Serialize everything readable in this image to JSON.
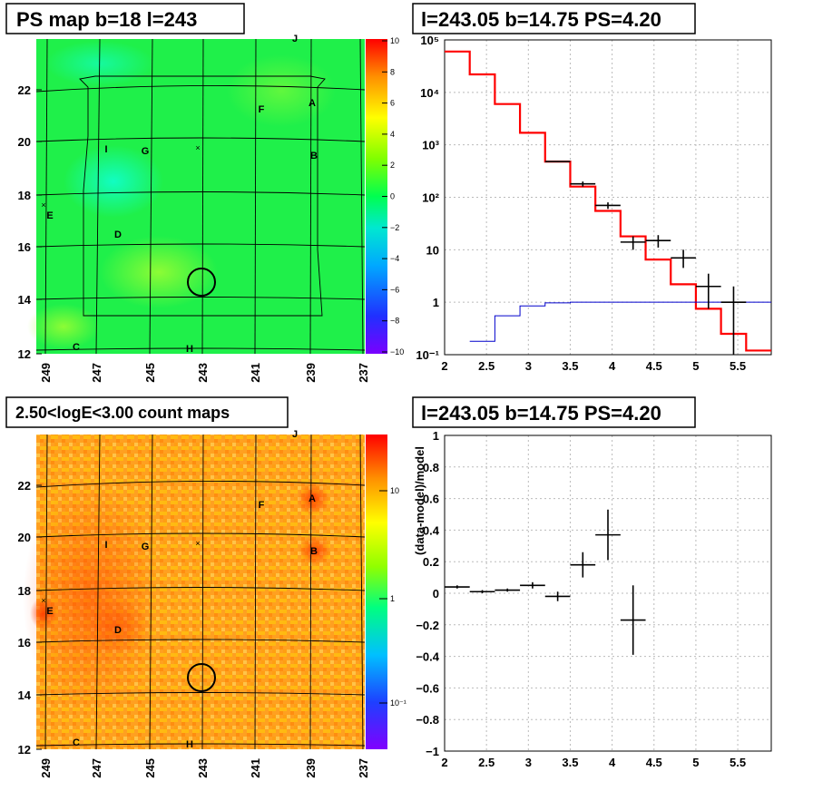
{
  "titles": {
    "ps_map": "PS map b=18 l=243",
    "spectrum": "l=243.05 b=14.75 PS=4.20",
    "count_map": "2.50<logE<3.00 count maps",
    "residual": "l=243.05 b=14.75 PS=4.20"
  },
  "map_axes": {
    "y_ticks": [
      "12",
      "14",
      "16",
      "18",
      "20",
      "22"
    ],
    "x_ticks": [
      "249",
      "247",
      "245",
      "243",
      "241",
      "239",
      "237"
    ]
  },
  "map_labels": [
    "J",
    "A",
    "F",
    "I",
    "G",
    "B",
    "E",
    "D",
    "C",
    "H"
  ],
  "ps_colorbar": {
    "ticks": [
      "10",
      "8",
      "6",
      "4",
      "2",
      "0",
      "−2",
      "−4",
      "−6",
      "−8",
      "−10"
    ]
  },
  "count_colorbar": {
    "ticks": [
      "10",
      "1",
      "10⁻¹"
    ]
  },
  "chart_data": [
    {
      "type": "line",
      "title": "l=243.05 b=14.75 PS=4.20",
      "yscale": "log",
      "xlim": [
        2,
        5.9
      ],
      "ylim": [
        0.1,
        100000
      ],
      "grid": true,
      "x_ticks": [
        "2",
        "2.5",
        "3",
        "3.5",
        "4",
        "4.5",
        "5",
        "5.5"
      ],
      "y_ticks": [
        "10⁻¹",
        "1",
        "10",
        "10²",
        "10³",
        "10⁴",
        "10⁵"
      ],
      "series": [
        {
          "kind": "data_points",
          "color": "#000000",
          "points": [
            {
              "x": 3.35,
              "xerr": 0.15,
              "y": 480,
              "ylo": 470,
              "yhi": 490
            },
            {
              "x": 3.65,
              "xerr": 0.15,
              "y": 180,
              "ylo": 160,
              "yhi": 200
            },
            {
              "x": 3.95,
              "xerr": 0.15,
              "y": 70,
              "ylo": 60,
              "yhi": 80
            },
            {
              "x": 4.25,
              "xerr": 0.15,
              "y": 14,
              "ylo": 10,
              "yhi": 18
            },
            {
              "x": 4.55,
              "xerr": 0.15,
              "y": 15,
              "ylo": 11,
              "yhi": 19
            },
            {
              "x": 4.85,
              "xerr": 0.15,
              "y": 7,
              "ylo": 4.5,
              "yhi": 10
            },
            {
              "x": 5.15,
              "xerr": 0.15,
              "y": 2,
              "ylo": 0.75,
              "yhi": 3.5
            },
            {
              "x": 5.45,
              "xerr": 0.15,
              "y": 1,
              "ylo": 0.1,
              "yhi": 2
            }
          ]
        },
        {
          "kind": "step",
          "color": "#ff0000",
          "edges": [
            2,
            2.3,
            2.6,
            2.9,
            3.2,
            3.5,
            3.8,
            4.1,
            4.4,
            4.7,
            5,
            5.3,
            5.6,
            5.9
          ],
          "values": [
            60000,
            22000,
            6000,
            1700,
            480,
            160,
            55,
            18,
            6.5,
            2.2,
            0.75,
            0.25,
            0.12
          ]
        },
        {
          "kind": "step",
          "color": "#0000cc",
          "edges": [
            2.3,
            2.6,
            2.9,
            3.2,
            3.5,
            3.8,
            4.1,
            4.4,
            4.7,
            5,
            5.3,
            5.6,
            5.9
          ],
          "values": [
            0.18,
            0.55,
            0.85,
            0.97,
            1,
            1,
            1,
            1,
            1,
            1,
            1,
            1
          ]
        }
      ]
    },
    {
      "type": "scatter",
      "title": "l=243.05 b=14.75 PS=4.20",
      "ylabel": "(data-model)/model",
      "xlim": [
        2,
        5.9
      ],
      "ylim": [
        -1,
        1
      ],
      "grid": true,
      "x_ticks": [
        "2",
        "2.5",
        "3",
        "3.5",
        "4",
        "4.5",
        "5",
        "5.5"
      ],
      "y_ticks": [
        "1",
        "0.8",
        "0.6",
        "0.4",
        "0.2",
        "0",
        "−0.2",
        "−0.4",
        "−0.6",
        "−0.8",
        "−1"
      ],
      "points": [
        {
          "x": 2.15,
          "xerr": 0.15,
          "y": 0.04,
          "ylo": 0.03,
          "yhi": 0.05
        },
        {
          "x": 2.45,
          "xerr": 0.15,
          "y": 0.01,
          "ylo": 0.0,
          "yhi": 0.02
        },
        {
          "x": 2.75,
          "xerr": 0.15,
          "y": 0.02,
          "ylo": 0.01,
          "yhi": 0.03
        },
        {
          "x": 3.05,
          "xerr": 0.15,
          "y": 0.05,
          "ylo": 0.03,
          "yhi": 0.07
        },
        {
          "x": 3.35,
          "xerr": 0.15,
          "y": -0.02,
          "ylo": -0.05,
          "yhi": 0.01
        },
        {
          "x": 3.65,
          "xerr": 0.15,
          "y": 0.18,
          "ylo": 0.1,
          "yhi": 0.26
        },
        {
          "x": 3.95,
          "xerr": 0.15,
          "y": 0.37,
          "ylo": 0.21,
          "yhi": 0.53
        },
        {
          "x": 4.25,
          "xerr": 0.15,
          "y": -0.17,
          "ylo": -0.39,
          "yhi": 0.05
        }
      ]
    }
  ]
}
